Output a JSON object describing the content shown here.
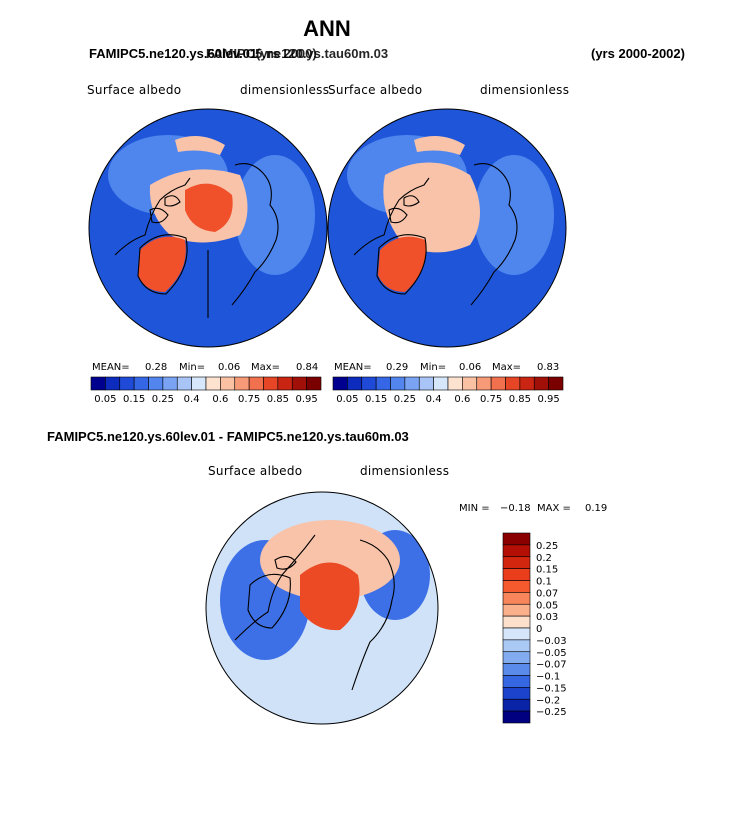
{
  "title": "ANN",
  "top_left_header": "FAMIPC5.ne120.ys.60lev.01",
  "top_left_header_overlap": "FAMIPC5.ne120.ys.tau60m.03",
  "top_years_mid": "(yrs 2000)",
  "top_years_right": "(yrs 2000-2002)",
  "diff_header": "FAMIPC5.ne120.ys.60lev.01 - FAMIPC5.ne120.ys.tau60m.03",
  "maps": [
    {
      "variable": "Surface albedo",
      "units": "dimensionless",
      "mean_label": "MEAN=",
      "mean": "0.28",
      "min_label": "Min=",
      "min": "0.06",
      "max_label": "Max=",
      "max": "0.84"
    },
    {
      "variable": "Surface albedo",
      "units": "dimensionless",
      "mean_label": "MEAN=",
      "mean": "0.29",
      "min_label": "Min=",
      "min": "0.06",
      "max_label": "Max=",
      "max": "0.83"
    }
  ],
  "diff_map": {
    "variable": "Surface albedo",
    "units": "dimensionless",
    "min_label": "MIN =",
    "min": "−0.18",
    "max_label": "MAX =",
    "max": "0.19"
  },
  "colors": {
    "ocean": "#1f56d9",
    "land_low": "#4f86ee",
    "ice_high": "#f0502a",
    "ice_mid": "#f8c3a9",
    "diff_neutral": "#cfe2f8",
    "diff_pos": "#ec4a25",
    "diff_neg": "#3d70e6"
  },
  "chart_data": [
    {
      "type": "heatmap",
      "projection": "north-polar-stereographic",
      "panel": "top-left",
      "case": "FAMIPC5.ne120.ys.60lev.01",
      "variable": "Surface albedo",
      "units": "dimensionless",
      "mean": 0.28,
      "min": 0.06,
      "max": 0.84,
      "colorbar": {
        "labels": [
          "0.05",
          "0.15",
          "0.25",
          "0.4",
          "0.6",
          "0.75",
          "0.85",
          "0.95"
        ],
        "colors": [
          "#00008f",
          "#0d2bbd",
          "#1f49d7",
          "#3566e6",
          "#5385ee",
          "#7aa3f3",
          "#a9c5f7",
          "#d7e7fb",
          "#fde2d0",
          "#fbc1a3",
          "#f79a77",
          "#f1704e",
          "#e64526",
          "#c92512",
          "#a11008",
          "#7a0000"
        ]
      }
    },
    {
      "type": "heatmap",
      "projection": "north-polar-stereographic",
      "panel": "top-right",
      "case": "FAMIPC5.ne120.ys.tau60m.03",
      "variable": "Surface albedo",
      "units": "dimensionless",
      "mean": 0.29,
      "min": 0.06,
      "max": 0.83,
      "colorbar": {
        "labels": [
          "0.05",
          "0.15",
          "0.25",
          "0.4",
          "0.6",
          "0.75",
          "0.85",
          "0.95"
        ],
        "colors": [
          "#00008f",
          "#0d2bbd",
          "#1f49d7",
          "#3566e6",
          "#5385ee",
          "#7aa3f3",
          "#a9c5f7",
          "#d7e7fb",
          "#fde2d0",
          "#fbc1a3",
          "#f79a77",
          "#f1704e",
          "#e64526",
          "#c92512",
          "#a11008",
          "#7a0000"
        ]
      }
    },
    {
      "type": "heatmap",
      "projection": "north-polar-stereographic",
      "panel": "bottom-difference",
      "case": "FAMIPC5.ne120.ys.60lev.01 - FAMIPC5.ne120.ys.tau60m.03",
      "variable": "Surface albedo",
      "units": "dimensionless",
      "min": -0.18,
      "max": 0.19,
      "colorbar": {
        "labels": [
          "0.25",
          "0.2",
          "0.15",
          "0.1",
          "0.07",
          "0.05",
          "0.03",
          "0",
          "−0.03",
          "−0.05",
          "−0.07",
          "−0.1",
          "−0.15",
          "−0.2",
          "−0.25"
        ],
        "colors": [
          "#8a0000",
          "#b30f05",
          "#d3260f",
          "#ea3d1c",
          "#f55a2f",
          "#f9855a",
          "#fbb08c",
          "#fde0cc",
          "#d5e6fa",
          "#aac9f5",
          "#83acf0",
          "#5a8bea",
          "#3567e2",
          "#1b43cc",
          "#0a24a8",
          "#000080"
        ]
      }
    }
  ]
}
